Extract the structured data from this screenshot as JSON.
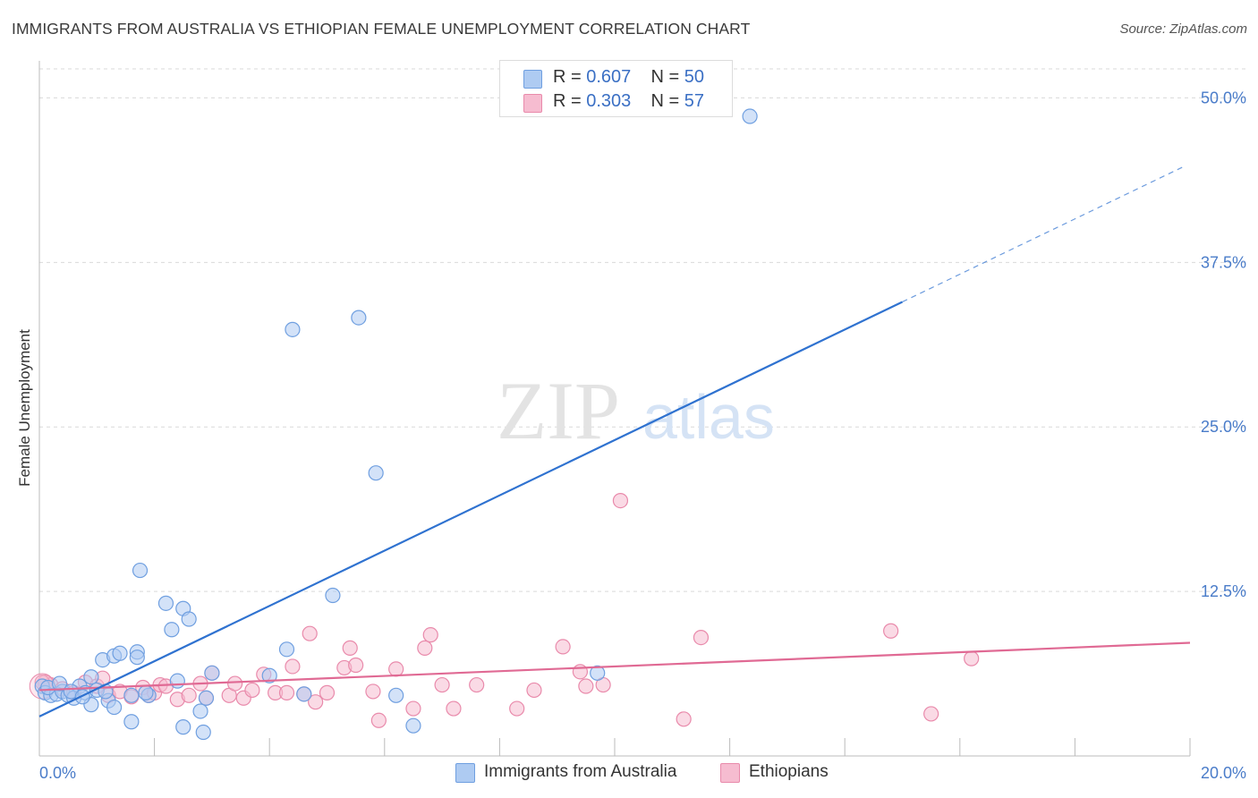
{
  "header": {
    "title": "IMMIGRANTS FROM AUSTRALIA VS ETHIOPIAN FEMALE UNEMPLOYMENT CORRELATION CHART",
    "source": "Source: ZipAtlas.com"
  },
  "watermark": {
    "zip": "ZIP",
    "atlas": "atlas"
  },
  "stats_box": {
    "rows": [
      {
        "r_label": "R = ",
        "r_value": "0.607",
        "n_label": "N = ",
        "n_value": "50",
        "color": "#aecbf2"
      },
      {
        "r_label": "R = ",
        "r_value": "0.303",
        "n_label": "N = ",
        "n_value": "57",
        "color": "#f6bcd0"
      }
    ]
  },
  "legend": {
    "items": [
      {
        "label": "Immigrants from Australia",
        "color": "#aecbf2"
      },
      {
        "label": "Ethiopians",
        "color": "#f6bcd0"
      }
    ]
  },
  "colors": {
    "blue_fill": "#aecbf2",
    "blue_stroke": "#6f9fe0",
    "blue_line": "#2f72d0",
    "pink_fill": "#f6bcd0",
    "pink_stroke": "#e98aab",
    "pink_line": "#e06a94",
    "grid": "#d9d9d9"
  },
  "chart_data": {
    "type": "scatter",
    "title": "IMMIGRANTS FROM AUSTRALIA VS ETHIOPIAN FEMALE UNEMPLOYMENT CORRELATION CHART",
    "xlabel": "",
    "ylabel": "Female Unemployment",
    "xlim": [
      0,
      20
    ],
    "ylim": [
      0,
      52
    ],
    "x_tick_labels": [
      "0.0%",
      "20.0%"
    ],
    "y_ticks": [
      12.5,
      25,
      37.5,
      50
    ],
    "y_tick_labels": [
      "12.5%",
      "25.0%",
      "37.5%",
      "50.0%"
    ],
    "grid": "horizontal dashed",
    "legend_position": "bottom-center",
    "series": [
      {
        "name": "Immigrants from Australia",
        "r": 0.607,
        "n": 50,
        "points": [
          [
            0.05,
            5.3
          ],
          [
            0.1,
            4.8
          ],
          [
            0.2,
            4.6
          ],
          [
            0.3,
            4.7
          ],
          [
            0.4,
            4.9
          ],
          [
            0.5,
            4.6
          ],
          [
            0.6,
            4.4
          ],
          [
            0.7,
            5.3
          ],
          [
            0.8,
            4.8
          ],
          [
            0.9,
            3.9
          ],
          [
            0.9,
            6.0
          ],
          [
            1.0,
            5.0
          ],
          [
            1.1,
            7.3
          ],
          [
            1.2,
            4.2
          ],
          [
            1.3,
            3.7
          ],
          [
            1.3,
            7.6
          ],
          [
            1.4,
            7.8
          ],
          [
            1.6,
            4.6
          ],
          [
            1.6,
            2.6
          ],
          [
            1.7,
            7.9
          ],
          [
            1.7,
            7.5
          ],
          [
            1.75,
            14.1
          ],
          [
            1.9,
            4.6
          ],
          [
            2.2,
            11.6
          ],
          [
            2.3,
            9.6
          ],
          [
            2.4,
            5.7
          ],
          [
            2.5,
            2.2
          ],
          [
            2.5,
            11.2
          ],
          [
            2.6,
            10.4
          ],
          [
            2.8,
            3.4
          ],
          [
            2.85,
            1.8
          ],
          [
            2.9,
            4.4
          ],
          [
            3.0,
            6.3
          ],
          [
            4.0,
            6.1
          ],
          [
            4.3,
            8.1
          ],
          [
            4.4,
            32.4
          ],
          [
            4.6,
            4.7
          ],
          [
            5.1,
            12.2
          ],
          [
            5.55,
            33.3
          ],
          [
            5.85,
            21.5
          ],
          [
            6.2,
            4.6
          ],
          [
            6.5,
            2.3
          ],
          [
            9.7,
            6.3
          ],
          [
            12.35,
            48.6
          ],
          [
            0.15,
            5.2
          ],
          [
            0.35,
            5.5
          ],
          [
            0.55,
            4.9
          ],
          [
            0.75,
            4.5
          ],
          [
            1.15,
            4.9
          ],
          [
            1.85,
            4.8
          ]
        ],
        "trend": {
          "x_start": 0,
          "y_start": 3.0,
          "x_solid_end": 15.0,
          "y_solid_end": 34.5,
          "x_dash_end": 19.9,
          "y_dash_end": 44.8
        }
      },
      {
        "name": "Ethiopians",
        "r": 0.303,
        "n": 57,
        "points": [
          [
            0.1,
            5.6
          ],
          [
            0.2,
            5.4
          ],
          [
            0.4,
            5.1
          ],
          [
            0.6,
            4.8
          ],
          [
            0.8,
            5.6
          ],
          [
            1.0,
            5.3
          ],
          [
            1.1,
            5.9
          ],
          [
            1.2,
            4.6
          ],
          [
            1.4,
            4.9
          ],
          [
            1.6,
            4.5
          ],
          [
            1.8,
            5.2
          ],
          [
            1.9,
            4.6
          ],
          [
            2.0,
            4.8
          ],
          [
            2.1,
            5.4
          ],
          [
            2.2,
            5.3
          ],
          [
            2.4,
            4.3
          ],
          [
            2.6,
            4.6
          ],
          [
            2.8,
            5.5
          ],
          [
            2.9,
            4.4
          ],
          [
            3.0,
            6.3
          ],
          [
            3.3,
            4.6
          ],
          [
            3.4,
            5.5
          ],
          [
            3.55,
            4.4
          ],
          [
            3.7,
            5.0
          ],
          [
            3.9,
            6.2
          ],
          [
            4.1,
            4.8
          ],
          [
            4.3,
            4.8
          ],
          [
            4.4,
            6.8
          ],
          [
            4.6,
            4.7
          ],
          [
            4.7,
            9.3
          ],
          [
            4.8,
            4.1
          ],
          [
            5.0,
            4.8
          ],
          [
            5.3,
            6.7
          ],
          [
            5.4,
            8.2
          ],
          [
            5.5,
            6.9
          ],
          [
            5.8,
            4.9
          ],
          [
            5.9,
            2.7
          ],
          [
            6.2,
            6.6
          ],
          [
            6.5,
            3.6
          ],
          [
            6.7,
            8.2
          ],
          [
            6.8,
            9.2
          ],
          [
            7.0,
            5.4
          ],
          [
            7.2,
            3.6
          ],
          [
            7.6,
            5.4
          ],
          [
            8.3,
            3.6
          ],
          [
            8.6,
            5.0
          ],
          [
            9.1,
            8.3
          ],
          [
            9.4,
            6.4
          ],
          [
            9.5,
            5.3
          ],
          [
            9.8,
            5.4
          ],
          [
            10.1,
            19.4
          ],
          [
            11.2,
            2.8
          ],
          [
            11.5,
            9.0
          ],
          [
            14.8,
            9.5
          ],
          [
            15.5,
            3.2
          ],
          [
            16.2,
            7.4
          ],
          [
            0.05,
            5.6
          ]
        ],
        "trend": {
          "x_start": 0,
          "y_start": 5.0,
          "x_end": 20,
          "y_end": 8.6
        }
      }
    ]
  }
}
